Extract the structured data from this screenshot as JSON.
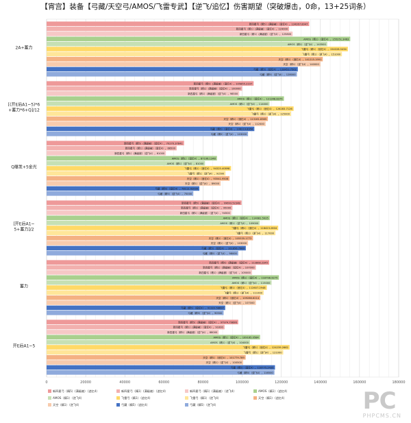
{
  "title": "【宵宫】装备【弓藏/天空弓/AMOS/飞雷专武】【逆飞/追忆】伤害期望（突破爆击，0命，13+25词条）",
  "legend": [
    {
      "label": "新四星弓（精5）(满级被）（追忆4）",
      "color": "#ee9999"
    },
    {
      "label": "新四星弓（精1）(满级被）（追忆4）",
      "color": "#f2b0ae"
    },
    {
      "label": "新四星弓（精1）(满级被）（逆飞4）",
      "color": "#f6c8c6"
    },
    {
      "label": "AMOS（精1）（追忆4）",
      "color": "#a9d08e"
    },
    {
      "label": "AMOS（精1）（逆飞4）",
      "color": "#c6e0b4"
    },
    {
      "label": "飞雷弓（精1）（追忆4）",
      "color": "#ffd966"
    },
    {
      "label": "飞雷弓（精1）（逆飞4）",
      "color": "#ffe699"
    },
    {
      "label": "天空（精1）（追忆4）",
      "color": "#f4b183"
    },
    {
      "label": "天空（精1）（逆飞4）",
      "color": "#f8cbad"
    },
    {
      "label": "弓藏（精5）（追忆4）",
      "color": "#4472c4"
    },
    {
      "label": "弓藏（精5）（逆飞4）",
      "color": "#8faadc"
    }
  ],
  "watermark": {
    "logo": "PC",
    "site": "PHPCMS.CN"
  },
  "chart_data": {
    "type": "bar",
    "orientation": "horizontal",
    "xlim": [
      0,
      180000
    ],
    "ticks": [
      0,
      20000,
      40000,
      60000,
      80000,
      100000,
      120000,
      140000,
      160000,
      180000
    ],
    "grid": true,
    "legend_position": "bottom",
    "categories": [
      "2A+蓄力",
      "[(开E后A1~5)*6+蓄力*6+Q]/12",
      "Q爆发+5金光",
      "[开E后A1~5+蓄力]/2",
      "蓄力",
      "开E后A1~5"
    ],
    "series": [
      {
        "name": "新四星弓（精5）(满级被）（追忆4）",
        "values": [
          134267.8947,
          105855.2197,
          70270.37841,
          99693.52348,
          113808.2345,
          97974.79896
        ]
      },
      {
        "name": "新四星弓（精1）(满级被）（追忆4）",
        "values": [
          124000,
          100000,
          66500,
          95000,
          107000,
          91000
        ]
      },
      {
        "name": "新四星弓（精1）(满级被）（逆飞4）",
        "values": [
          125800,
          98500,
          61000,
          94500,
          105000,
          88000
        ]
      },
      {
        "name": "AMOS（精1）（追忆4）",
        "values": [
          155251.3463,
          121348.8375,
          87106.1348,
          114081.5925,
          118798.9275,
          109165.0584
        ]
      },
      {
        "name": "AMOS（精1）（逆飞4）",
        "values": [
          143500,
          114000,
          81000,
          109000,
          115000,
          104000
        ]
      },
      {
        "name": "飞雷弓（精1）（追忆4）",
        "values": [
          154028.5434,
          126283.7126,
          94325.40898,
          118423.2604,
          112607.2948,
          124239.2662
        ]
      },
      {
        "name": "飞雷弓（精1）（逆飞4）",
        "values": [
          151000,
          125000,
          91500,
          117000,
          111000,
          121000
        ]
      },
      {
        "name": "天空（精1）（追忆4）",
        "values": [
          141215.1991,
          113161.8365,
          93541.9508,
          105535.1772,
          109286.6214,
          101779.789
        ]
      },
      {
        "name": "天空（精1）（逆飞4）",
        "values": [
          140000,
          112000,
          89000,
          103000,
          107000,
          100500
        ]
      },
      {
        "name": "弓藏（精5）（追忆4）",
        "values": [
          128453.7502,
          106219.8956,
          78112.42099,
          101856.7989,
          91322.58697,
          116775.2435
        ]
      },
      {
        "name": "弓藏（精5）（逆飞4）",
        "values": [
          128000,
          103000,
          75000,
          98000,
          90500,
          116500
        ]
      }
    ]
  }
}
